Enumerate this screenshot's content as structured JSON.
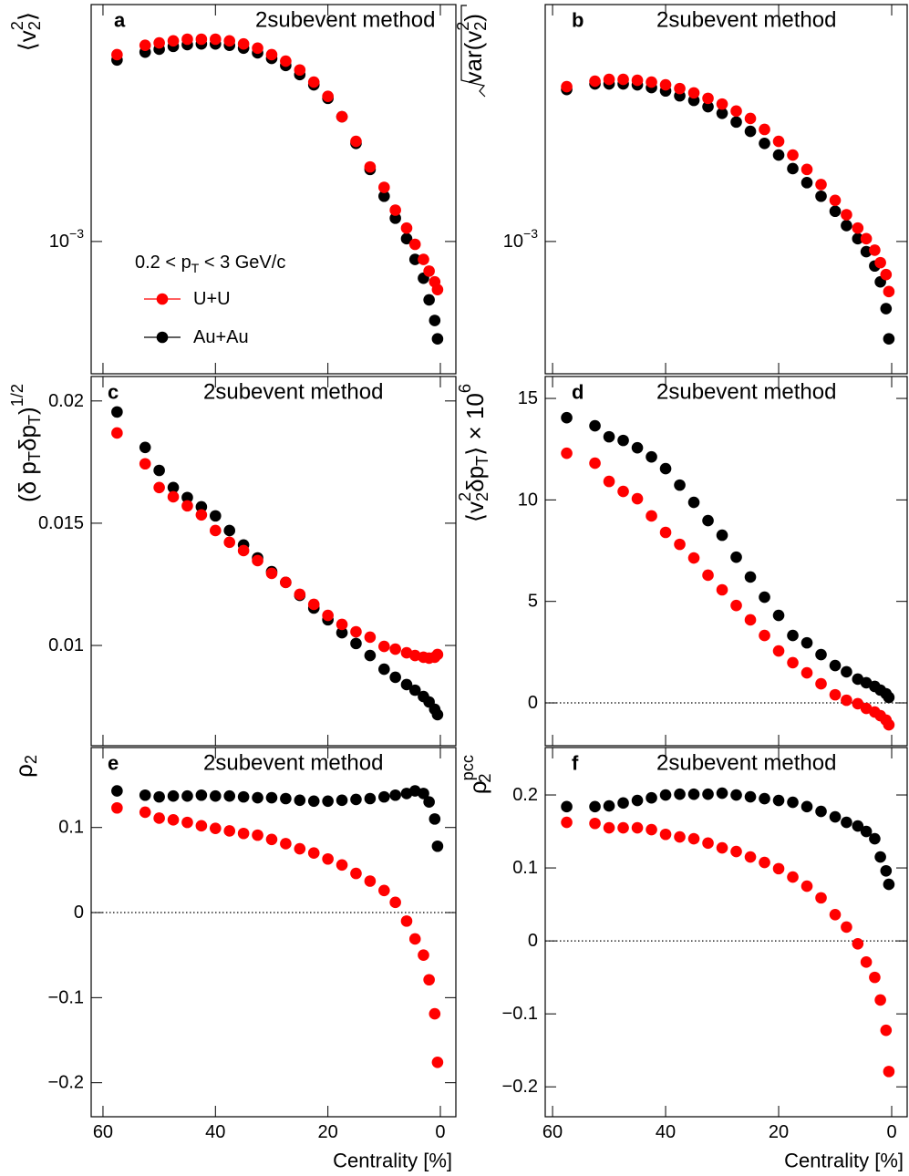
{
  "chart_data": [
    {
      "type": "scatter",
      "panel": "a",
      "subtitle": "2subevent method",
      "y_label": [
        {
          "text": "⟨v"
        },
        {
          "text": "2",
          "pos": "sup"
        },
        {
          "text": "2",
          "pos": "sub"
        },
        {
          "text": "⟩"
        }
      ],
      "log_y": true,
      "xlim": [
        62.1,
        -2.76
      ],
      "xticks": [
        60,
        40,
        20,
        0
      ],
      "ylim": [
        0.00039,
        0.0054
      ],
      "yticks": [
        {
          "value": 0.001,
          "label": "10",
          "exponent": "−3"
        }
      ],
      "legend_title": [
        {
          "text": "0.2 < p"
        },
        {
          "text": "T",
          "pos": "sub"
        },
        {
          "text": " < 3 GeV/c"
        }
      ],
      "x": [
        57.5,
        52.5,
        50,
        47.5,
        45,
        42.5,
        40,
        37.5,
        35,
        32.5,
        30,
        27.5,
        25,
        22.5,
        20,
        17.5,
        15,
        12.5,
        10,
        8,
        6,
        4.5,
        3,
        2,
        1,
        0.5
      ],
      "series": [
        {
          "name": "U+U",
          "color": "#ff0000",
          "values": [
            0.00378,
            0.00404,
            0.00411,
            0.00417,
            0.00422,
            0.00422,
            0.00422,
            0.00417,
            0.00408,
            0.00396,
            0.00378,
            0.00361,
            0.00339,
            0.00311,
            0.00281,
            0.00243,
            0.00204,
            0.0017,
            0.00147,
            0.00125,
            0.0011,
            0.00098,
            0.00088,
            0.00081,
            0.00075,
            0.00071
          ]
        },
        {
          "name": "Au+Au",
          "color": "#000000",
          "values": [
            0.00364,
            0.00385,
            0.00393,
            0.00401,
            0.00406,
            0.00408,
            0.00408,
            0.00404,
            0.00396,
            0.00383,
            0.00368,
            0.0035,
            0.00328,
            0.00305,
            0.00277,
            0.00243,
            0.00201,
            0.00167,
            0.00138,
            0.00118,
            0.00102,
            0.00088,
            0.00077,
            0.00066,
            0.00057,
            0.0005
          ]
        }
      ]
    },
    {
      "type": "scatter",
      "panel": "b",
      "subtitle": "2subevent method",
      "y_label": [
        {
          "text": "var(v"
        },
        {
          "text": "2",
          "pos": "sup"
        },
        {
          "text": "2",
          "pos": "sub"
        },
        {
          "text": ")"
        }
      ],
      "log_y": true,
      "xlim": [
        61.3,
        -2.74
      ],
      "xticks": [
        60,
        40,
        20,
        0
      ],
      "ylim": [
        0.00039,
        0.0054
      ],
      "yticks": [
        {
          "value": 0.001,
          "label": "10",
          "exponent": "−3"
        }
      ],
      "x": [
        57.5,
        52.5,
        50,
        47.5,
        45,
        42.5,
        40,
        37.5,
        35,
        32.5,
        30,
        27.5,
        25,
        22.5,
        20,
        17.5,
        15,
        12.5,
        10,
        8,
        6,
        4.5,
        3,
        2,
        1,
        0.5
      ],
      "series": [
        {
          "color": "#ff0000",
          "values": [
            0.00301,
            0.00313,
            0.00317,
            0.00317,
            0.00315,
            0.00311,
            0.00305,
            0.00297,
            0.00288,
            0.00277,
            0.00266,
            0.00253,
            0.0024,
            0.00222,
            0.00204,
            0.00185,
            0.00167,
            0.0015,
            0.00134,
            0.00121,
            0.0011,
            0.00102,
            0.00094,
            0.00086,
            0.00079,
            0.0007
          ]
        },
        {
          "color": "#000000",
          "values": [
            0.00295,
            0.00307,
            0.00307,
            0.00307,
            0.00305,
            0.00299,
            0.00292,
            0.00282,
            0.00273,
            0.00261,
            0.00249,
            0.00234,
            0.00219,
            0.00201,
            0.00185,
            0.00168,
            0.00152,
            0.00138,
            0.00124,
            0.00112,
            0.00102,
            0.00093,
            0.00084,
            0.00075,
            0.00062,
            0.0005
          ]
        }
      ]
    },
    {
      "type": "scatter",
      "panel": "c",
      "subtitle": "2subevent method",
      "y_label": [
        {
          "text": "(δ p"
        },
        {
          "text": "T",
          "pos": "sub"
        },
        {
          "text": "δp"
        },
        {
          "text": "T",
          "pos": "sub"
        },
        {
          "text": ")"
        },
        {
          "text": "1/2",
          "pos": "sup"
        }
      ],
      "xlim": [
        62.1,
        -2.76
      ],
      "xticks": [
        60,
        40,
        20,
        0
      ],
      "ylim": [
        0.0059,
        0.021
      ],
      "yticks": [
        0.01,
        0.015,
        0.02
      ],
      "x": [
        57.5,
        52.5,
        50,
        47.5,
        45,
        42.5,
        40,
        37.5,
        35,
        32.5,
        30,
        27.5,
        25,
        22.5,
        20,
        17.5,
        15,
        12.5,
        10,
        8,
        6,
        4.5,
        3,
        2,
        1,
        0.5
      ],
      "series": [
        {
          "color": "#ff0000",
          "values": [
            0.01869,
            0.01743,
            0.01646,
            0.01608,
            0.01571,
            0.01534,
            0.0147,
            0.01422,
            0.01388,
            0.01347,
            0.01295,
            0.01258,
            0.01209,
            0.01168,
            0.01123,
            0.01086,
            0.01056,
            0.01034,
            0.00996,
            0.00985,
            0.0097,
            0.00959,
            0.00952,
            0.00948,
            0.00952,
            0.00963
          ]
        },
        {
          "color": "#000000",
          "values": [
            0.01955,
            0.0181,
            0.01716,
            0.01646,
            0.01605,
            0.01567,
            0.0153,
            0.0147,
            0.01411,
            0.01358,
            0.01302,
            0.01258,
            0.01205,
            0.01153,
            0.01105,
            0.01052,
            0.01008,
            0.00959,
            0.00903,
            0.0087,
            0.0084,
            0.00817,
            0.00791,
            0.00769,
            0.00739,
            0.00717
          ]
        }
      ]
    },
    {
      "type": "scatter",
      "panel": "d",
      "subtitle": "2subevent method",
      "y_label": [
        {
          "text": "⟨v"
        },
        {
          "text": "2",
          "pos": "sup"
        },
        {
          "text": "2",
          "pos": "sub"
        },
        {
          "text": "δp"
        },
        {
          "text": "T",
          "pos": "sub"
        },
        {
          "text": "⟩ × 10"
        },
        {
          "text": "6",
          "pos": "sup"
        }
      ],
      "xlim": [
        61.3,
        -2.74
      ],
      "xticks": [
        60,
        40,
        20,
        0
      ],
      "ylim": [
        -2.11,
        16.08
      ],
      "yticks": [
        0,
        5,
        10,
        15
      ],
      "zero_line": true,
      "x": [
        57.5,
        52.5,
        50,
        47.5,
        45,
        42.5,
        40,
        37.5,
        35,
        32.5,
        30,
        27.5,
        25,
        22.5,
        20,
        17.5,
        15,
        12.5,
        10,
        8,
        6,
        4.5,
        3,
        2,
        1,
        0.5
      ],
      "series": [
        {
          "color": "#ff0000",
          "values": [
            12.3,
            11.81,
            10.91,
            10.42,
            10.06,
            9.21,
            8.4,
            7.81,
            7.14,
            6.29,
            5.57,
            4.8,
            4.09,
            3.32,
            2.56,
            1.98,
            1.48,
            0.94,
            0.4,
            0.13,
            -0.04,
            -0.27,
            -0.45,
            -0.63,
            -0.85,
            -1.08
          ]
        },
        {
          "color": "#000000",
          "values": [
            14.05,
            13.65,
            13.11,
            12.93,
            12.57,
            12.12,
            11.54,
            10.73,
            9.88,
            8.98,
            8.26,
            7.18,
            6.2,
            5.21,
            4.31,
            3.32,
            2.96,
            2.38,
            1.84,
            1.53,
            1.17,
            0.99,
            0.81,
            0.63,
            0.45,
            0.27
          ]
        }
      ]
    },
    {
      "type": "scatter",
      "panel": "e",
      "subtitle": "2subevent method",
      "y_label": [
        {
          "text": "ρ"
        },
        {
          "text": "2",
          "pos": "sub"
        }
      ],
      "x_label": "Centrality [%]",
      "x_tick_labels": true,
      "xlim": [
        62.1,
        -2.76
      ],
      "xticks": [
        60,
        40,
        20,
        0
      ],
      "ylim": [
        -0.24,
        0.194
      ],
      "yticks": [
        0.1,
        0,
        {
          "value": -0.1,
          "label": "−0.1"
        },
        {
          "value": -0.2,
          "label": "−0.2"
        }
      ],
      "zero_line": true,
      "x": [
        57.5,
        52.5,
        50,
        47.5,
        45,
        42.5,
        40,
        37.5,
        35,
        32.5,
        30,
        27.5,
        25,
        22.5,
        20,
        17.5,
        15,
        12.5,
        10,
        8,
        6,
        4.5,
        3,
        2,
        1,
        0.5
      ],
      "series": [
        {
          "color": "#ff0000",
          "values": [
            0.123,
            0.118,
            0.111,
            0.109,
            0.106,
            0.102,
            0.099,
            0.096,
            0.093,
            0.091,
            0.086,
            0.081,
            0.075,
            0.07,
            0.063,
            0.056,
            0.046,
            0.037,
            0.026,
            0.012,
            -0.01,
            -0.031,
            -0.05,
            -0.079,
            -0.119,
            -0.176
          ]
        },
        {
          "color": "#000000",
          "values": [
            0.143,
            0.138,
            0.136,
            0.137,
            0.137,
            0.138,
            0.137,
            0.137,
            0.136,
            0.135,
            0.135,
            0.134,
            0.132,
            0.131,
            0.131,
            0.132,
            0.133,
            0.134,
            0.136,
            0.138,
            0.14,
            0.143,
            0.14,
            0.13,
            0.11,
            0.078
          ]
        }
      ]
    },
    {
      "type": "scatter",
      "panel": "f",
      "subtitle": "2subevent method",
      "y_label": [
        {
          "text": "ρ"
        },
        {
          "text": "pcc",
          "pos": "sup"
        },
        {
          "text": "2",
          "pos": "sub"
        }
      ],
      "x_label": "Centrality [%]",
      "x_tick_labels": true,
      "xlim": [
        61.3,
        -2.74
      ],
      "xticks": [
        60,
        40,
        20,
        0
      ],
      "ylim": [
        -0.241,
        0.265
      ],
      "yticks": [
        0.2,
        0.1,
        0,
        {
          "value": -0.1,
          "label": "−0.1"
        },
        {
          "value": -0.2,
          "label": "−0.2"
        }
      ],
      "zero_line": true,
      "x": [
        57.5,
        52.5,
        50,
        47.5,
        45,
        42.5,
        40,
        37.5,
        35,
        32.5,
        30,
        27.5,
        25,
        22.5,
        20,
        17.5,
        15,
        12.5,
        10,
        8,
        6,
        4.5,
        3,
        2,
        1,
        0.5
      ],
      "series": [
        {
          "color": "#ff0000",
          "values": [
            0.1625,
            0.161,
            0.155,
            0.155,
            0.155,
            0.1525,
            0.146,
            0.1425,
            0.14,
            0.134,
            0.1275,
            0.1225,
            0.115,
            0.1075,
            0.099,
            0.0875,
            0.075,
            0.059,
            0.036,
            0.019,
            -0.004,
            -0.029,
            -0.05,
            -0.081,
            -0.1225,
            -0.179
          ]
        },
        {
          "color": "#000000",
          "values": [
            0.184,
            0.184,
            0.185,
            0.189,
            0.1925,
            0.196,
            0.2,
            0.201,
            0.201,
            0.201,
            0.2025,
            0.2,
            0.1975,
            0.195,
            0.1925,
            0.19,
            0.184,
            0.1775,
            0.17,
            0.1625,
            0.1575,
            0.15,
            0.14,
            0.115,
            0.096,
            0.0775
          ]
        }
      ]
    }
  ]
}
